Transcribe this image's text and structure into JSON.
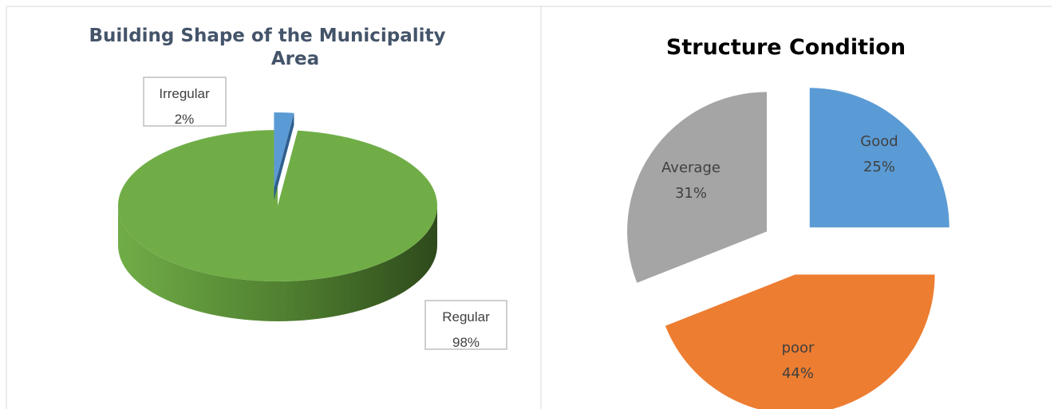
{
  "chart_data": [
    {
      "type": "pie3d",
      "title": "Building Shape of the Municipality Area",
      "categories": [
        "Irregular",
        "Regular"
      ],
      "values": [
        2,
        98
      ],
      "value_labels": [
        "2%",
        "98%"
      ],
      "colors": [
        "#5b9bd5",
        "#70ad47"
      ]
    },
    {
      "type": "pie",
      "title": "Structure Condition",
      "categories": [
        "Good",
        "poor",
        "Average"
      ],
      "values": [
        25,
        44,
        31
      ],
      "value_labels": [
        "25%",
        "44%",
        "31%"
      ],
      "colors": [
        "#5b9bd5",
        "#ed7d31",
        "#a5a5a5"
      ]
    }
  ]
}
